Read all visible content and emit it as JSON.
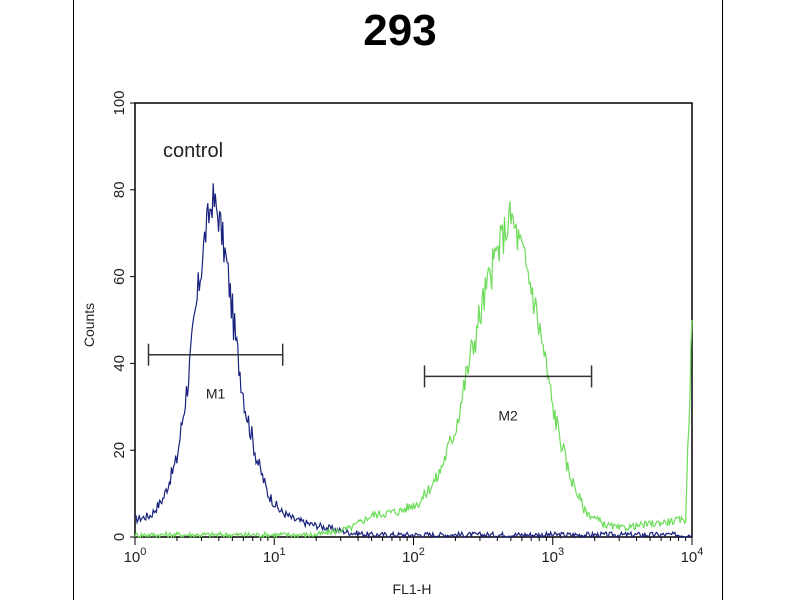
{
  "chart_data": {
    "type": "line",
    "title": "293",
    "xlabel": "FL1-H",
    "ylabel": "Counts",
    "x_scale": "log",
    "xlim": [
      1,
      10000
    ],
    "ylim": [
      0,
      100
    ],
    "x_ticks": [
      1,
      10,
      100,
      1000,
      10000
    ],
    "x_tick_labels": [
      {
        "base": "10",
        "exp": "0"
      },
      {
        "base": "10",
        "exp": "1"
      },
      {
        "base": "10",
        "exp": "2"
      },
      {
        "base": "10",
        "exp": "3"
      },
      {
        "base": "10",
        "exp": "4"
      }
    ],
    "y_ticks": [
      0,
      20,
      40,
      60,
      80,
      100
    ],
    "y_tick_labels": [
      "0",
      "20",
      "40",
      "60",
      "80",
      "100"
    ],
    "annotation": "control",
    "grid": false,
    "series": [
      {
        "color": "#1a237e",
        "peak_x": 3.6,
        "peak_y": 78,
        "x": [
          1,
          1.3,
          1.6,
          2.0,
          2.4,
          2.8,
          3.2,
          3.6,
          4.0,
          4.6,
          5.3,
          6.2,
          7.5,
          9,
          11,
          14,
          18,
          25,
          35,
          50,
          100,
          1000,
          10000
        ],
        "y": [
          4,
          5,
          9,
          18,
          36,
          55,
          70,
          78,
          74,
          62,
          45,
          30,
          18,
          10,
          6,
          4,
          3,
          2,
          1,
          0.5,
          0.5,
          0.5,
          0.5
        ]
      },
      {
        "color": "#6ddc5a",
        "peak_x": 500,
        "peak_y": 74,
        "x": [
          1,
          20,
          35,
          50,
          80,
          110,
          150,
          200,
          250,
          320,
          400,
          500,
          600,
          700,
          850,
          1000,
          1300,
          1700,
          2300,
          3000,
          5000,
          9000,
          10000
        ],
        "y": [
          0.5,
          0.5,
          2,
          5,
          6,
          8,
          14,
          25,
          40,
          55,
          66,
          74,
          66,
          58,
          44,
          30,
          15,
          6,
          3,
          2,
          3,
          4,
          50
        ]
      }
    ],
    "markers": [
      {
        "label": "M1",
        "x_start": 1.25,
        "x_end": 11.5,
        "y": 42
      },
      {
        "label": "M2",
        "x_start": 120,
        "x_end": 1900,
        "y": 37
      }
    ]
  }
}
